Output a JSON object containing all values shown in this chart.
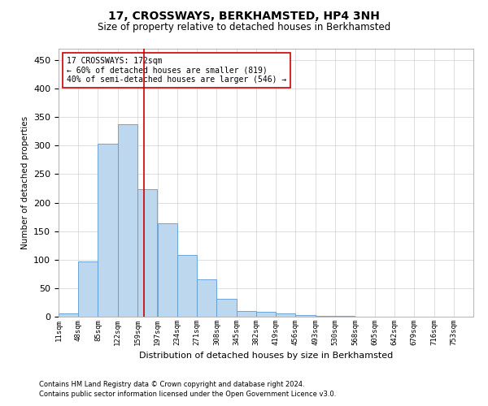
{
  "title": "17, CROSSWAYS, BERKHAMSTED, HP4 3NH",
  "subtitle": "Size of property relative to detached houses in Berkhamsted",
  "xlabel": "Distribution of detached houses by size in Berkhamsted",
  "ylabel": "Number of detached properties",
  "bar_color": "#bdd7ee",
  "bar_edge_color": "#5b9bd5",
  "background_color": "#ffffff",
  "grid_color": "#d0d0d0",
  "annotation_line1": "17 CROSSWAYS: 172sqm",
  "annotation_line2": "← 60% of detached houses are smaller (819)",
  "annotation_line3": "40% of semi-detached houses are larger (546) →",
  "vline_x": 172,
  "vline_color": "#cc0000",
  "footnote1": "Contains HM Land Registry data © Crown copyright and database right 2024.",
  "footnote2": "Contains public sector information licensed under the Open Government Licence v3.0.",
  "tick_labels": [
    "11sqm",
    "48sqm",
    "85sqm",
    "122sqm",
    "159sqm",
    "197sqm",
    "234sqm",
    "271sqm",
    "308sqm",
    "345sqm",
    "382sqm",
    "419sqm",
    "456sqm",
    "493sqm",
    "530sqm",
    "568sqm",
    "605sqm",
    "642sqm",
    "679sqm",
    "716sqm",
    "753sqm"
  ],
  "bin_edges": [
    11,
    48,
    85,
    122,
    159,
    197,
    234,
    271,
    308,
    345,
    382,
    419,
    456,
    493,
    530,
    568,
    605,
    642,
    679,
    716,
    753
  ],
  "bar_heights": [
    5,
    97,
    303,
    337,
    224,
    164,
    108,
    65,
    32,
    10,
    8,
    6,
    3,
    1,
    1,
    0,
    0,
    0,
    0,
    0,
    0
  ],
  "ylim": [
    0,
    470
  ],
  "yticks": [
    0,
    50,
    100,
    150,
    200,
    250,
    300,
    350,
    400,
    450
  ]
}
